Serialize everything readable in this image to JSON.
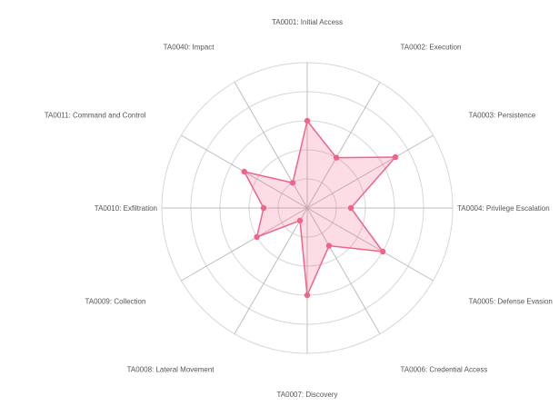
{
  "chart_data": {
    "type": "radar",
    "axes": [
      "TA0001: Initial Access",
      "TA0002: Execution",
      "TA0003: Persistence",
      "TA0004: Privilege Escalation",
      "TA0005: Defense Evasion",
      "TA0006: Credential Access",
      "TA0007: Discovery",
      "TA0008: Lateral Movement",
      "TA0009: Collection",
      "TA0010: Exfiltration",
      "TA0011: Command and Control",
      "TA0040: Impact"
    ],
    "series": [
      {
        "values": [
          6,
          4,
          7,
          3,
          6,
          3,
          6,
          1,
          4,
          3,
          5,
          2
        ]
      }
    ],
    "rlim": [
      0,
      10
    ],
    "ring_count": 5,
    "grid": true,
    "colors": {
      "series_line": "#f0648a",
      "series_fill": "rgba(240,100,138,0.22)",
      "grid": "#d6d6d6",
      "spokes": "#bdbdbd"
    }
  }
}
